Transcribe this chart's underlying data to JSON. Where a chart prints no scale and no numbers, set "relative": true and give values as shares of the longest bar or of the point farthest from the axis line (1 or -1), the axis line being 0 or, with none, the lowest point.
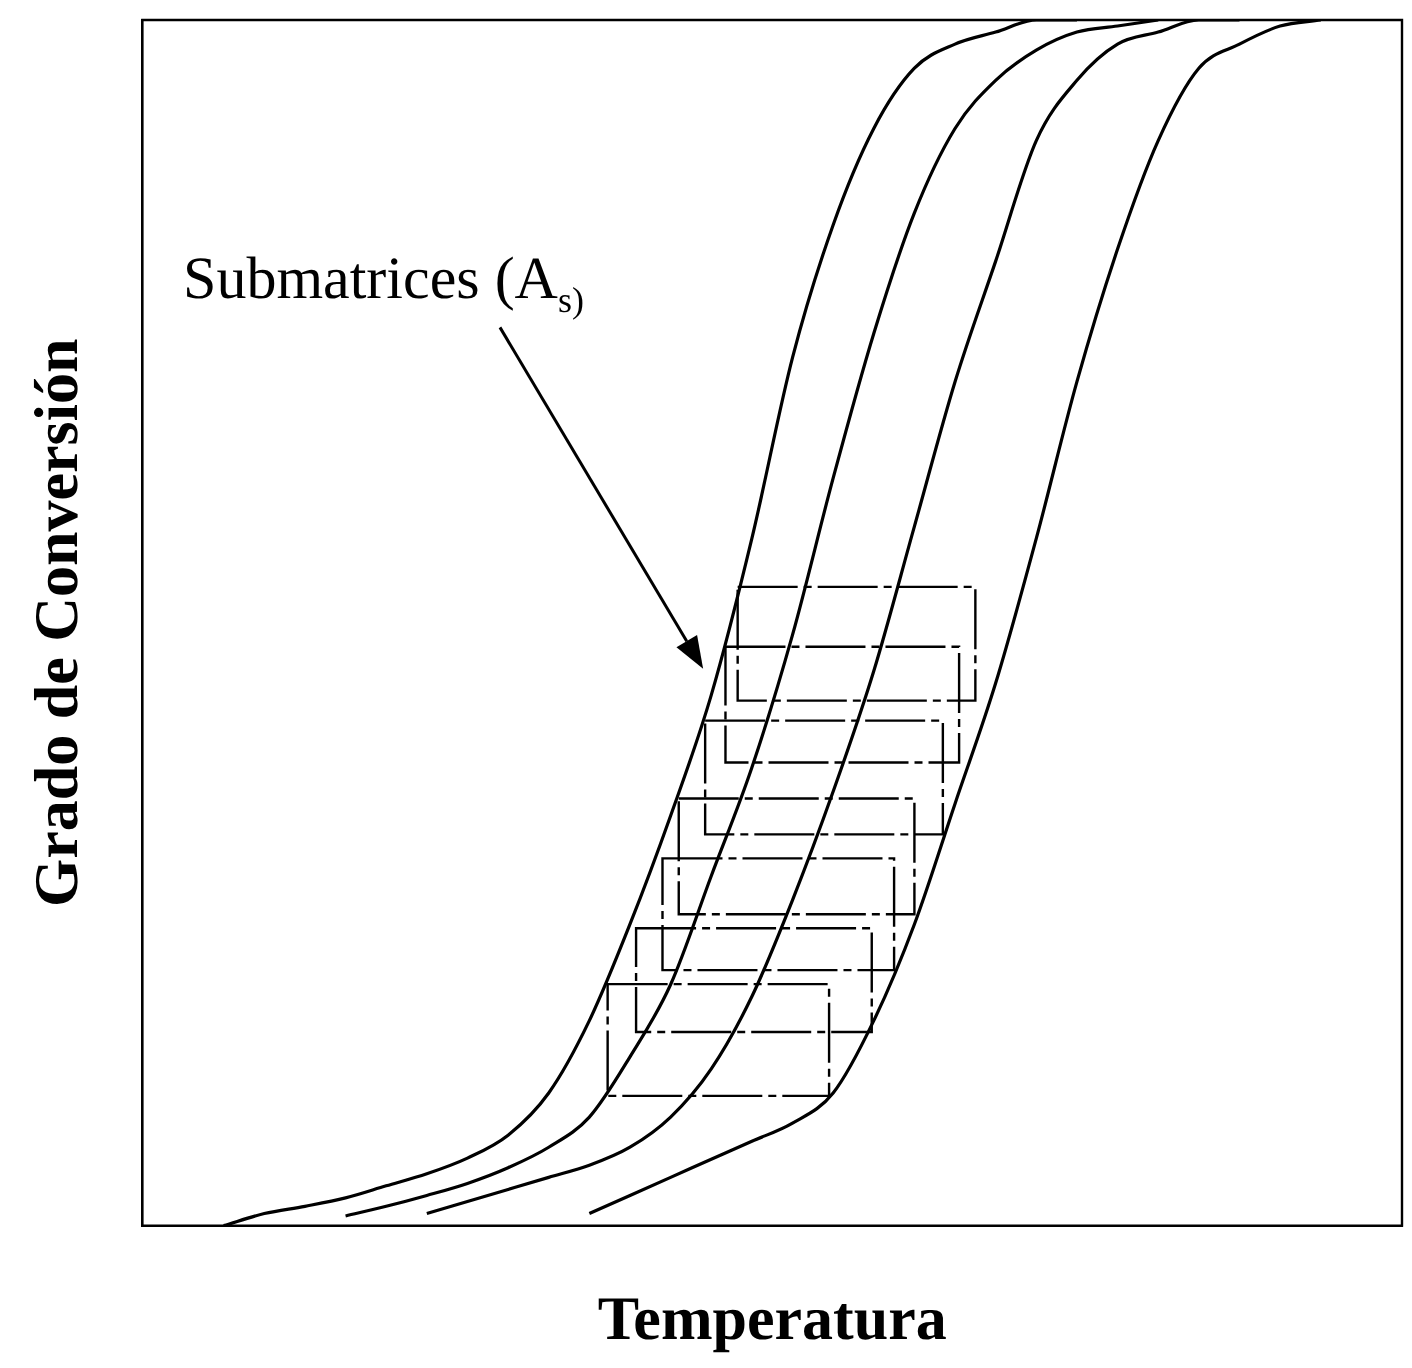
{
  "chart_data": {
    "type": "line",
    "relative": true,
    "xlabel": "Temperatura",
    "ylabel": "Grado de Conversión",
    "annotations": [
      "Submatrices (A$_{s)}$"
    ],
    "marker": "none",
    "line_style": "solid",
    "categories": [
      null,
      null,
      null,
      null,
      null,
      null,
      null,
      null,
      null,
      null,
      null,
      null,
      null,
      null,
      null,
      null,
      null,
      null,
      null,
      null,
      null,
      null,
      null,
      null,
      null,
      null,
      null,
      null,
      null,
      null,
      null,
      null
    ],
    "series": [
      {
        "color": "#000000",
        "values": [
          null,
          null,
          0,
          0.01,
          0.016,
          0.023,
          0.033,
          0.043,
          0.056,
          0.075,
          0.11,
          0.17,
          0.25,
          0.34,
          0.44,
          0.57,
          0.72,
          0.83,
          0.91,
          0.96,
          0.98,
          0.99,
          1,
          1,
          null,
          null,
          null,
          null,
          null,
          null,
          null,
          null
        ]
      },
      {
        "color": "#000000",
        "values": [
          null,
          null,
          null,
          null,
          null,
          0.008,
          0.016,
          0.025,
          0.035,
          0.048,
          0.065,
          0.09,
          0.14,
          0.2,
          0.29,
          0.38,
          0.49,
          0.62,
          0.74,
          0.84,
          0.91,
          0.95,
          0.975,
          0.99,
          0.995,
          1,
          null,
          null,
          null,
          null,
          null,
          null
        ]
      },
      {
        "color": "#000000",
        "values": [
          null,
          null,
          null,
          null,
          null,
          null,
          null,
          0.01,
          0.02,
          0.03,
          0.04,
          0.05,
          0.065,
          0.09,
          0.13,
          0.19,
          0.27,
          0.36,
          0.46,
          0.58,
          0.7,
          0.8,
          0.9,
          0.95,
          0.98,
          0.99,
          1,
          1,
          null,
          null,
          null,
          null
        ]
      },
      {
        "color": "#000000",
        "values": [
          null,
          null,
          null,
          null,
          null,
          null,
          null,
          null,
          null,
          null,
          null,
          0.01,
          0.025,
          0.04,
          0.055,
          0.07,
          0.085,
          0.11,
          0.17,
          0.25,
          0.35,
          0.45,
          0.57,
          0.7,
          0.81,
          0.9,
          0.96,
          0.98,
          0.995,
          1,
          null,
          null
        ]
      }
    ]
  }
}
